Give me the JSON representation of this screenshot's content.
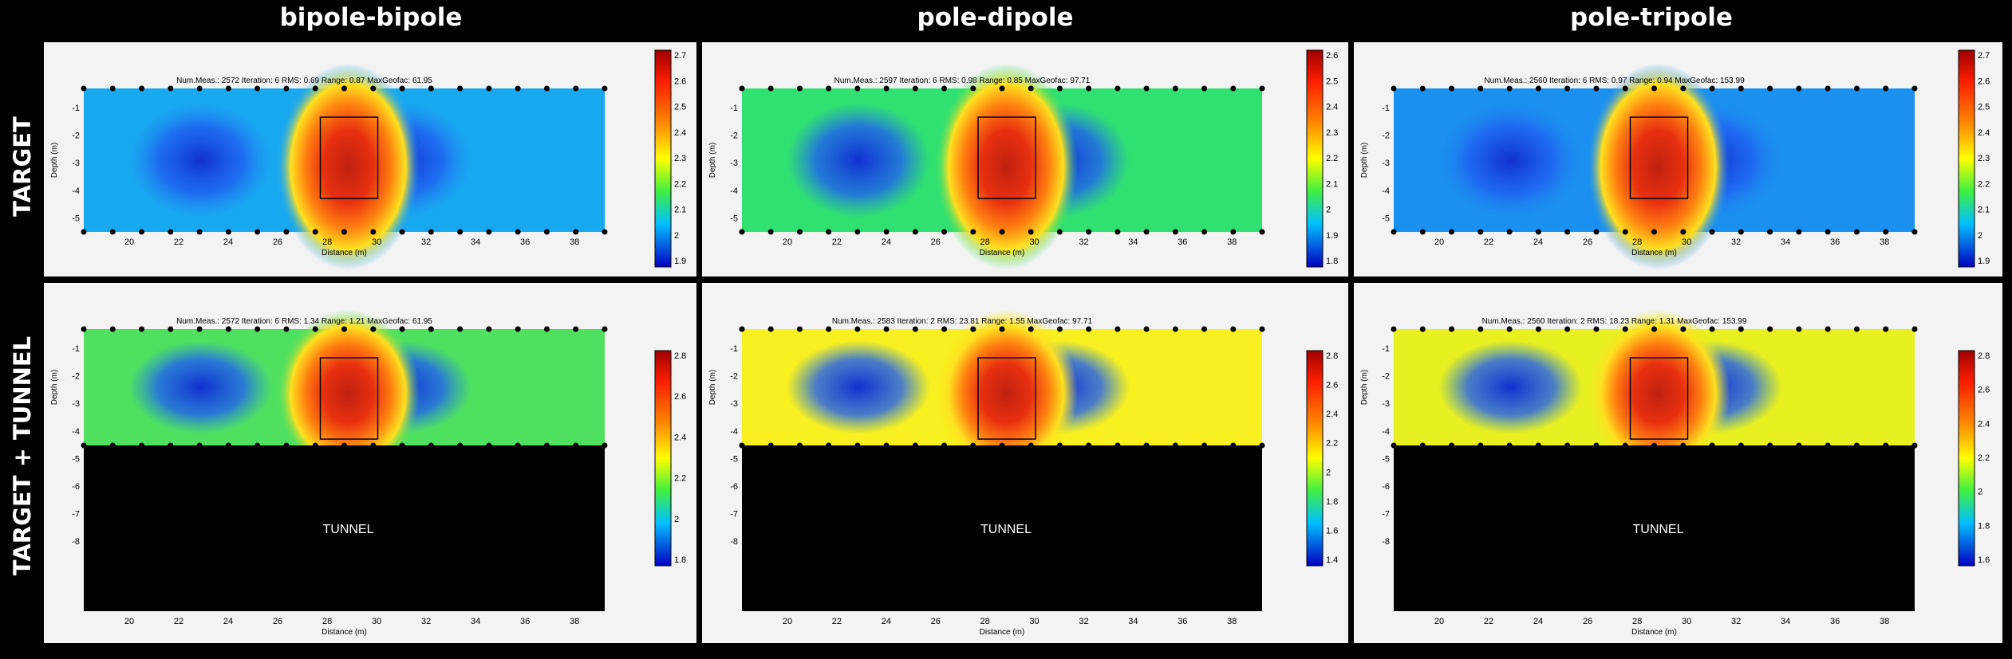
{
  "columns": [
    "bipole-bipole",
    "pole-dipole",
    "pole-tripole"
  ],
  "rows": [
    "TARGET",
    "TARGET + TUNNEL"
  ],
  "tunnel_label": "TUNNEL",
  "axis": {
    "xlabel": "Distance (m)",
    "ylabel": "Depth (m)",
    "x_ticks": [
      "20",
      "22",
      "24",
      "26",
      "28",
      "30",
      "32",
      "34",
      "36",
      "38"
    ],
    "y_ticks_target": [
      "-1",
      "-2",
      "-3",
      "-4",
      "-5"
    ],
    "y_ticks_tunnel": [
      "-1",
      "-2",
      "-3",
      "-4",
      "-5",
      "-6",
      "-7",
      "-8"
    ]
  },
  "panels": [
    {
      "row": 0,
      "col": 0,
      "info": "Num.Meas.: 2572   Iteration: 6   RMS: 0.69   Range: 0.87   MaxGeofac: 61.95",
      "colorbar": [
        "2.7",
        "2.6",
        "2.5",
        "2.4",
        "2.3",
        "2.2",
        "2.1",
        "2",
        "1.9"
      ],
      "bg": "#18a8f0"
    },
    {
      "row": 0,
      "col": 1,
      "info": "Num.Meas.: 2597   Iteration: 6   RMS: 0.98   Range: 0.85   MaxGeofac: 97.71",
      "colorbar": [
        "2.6",
        "2.5",
        "2.4",
        "2.3",
        "2.2",
        "2.1",
        "2",
        "1.9",
        "1.8"
      ],
      "bg": "#30e070"
    },
    {
      "row": 0,
      "col": 2,
      "info": "Num.Meas.: 2560   Iteration: 6   RMS: 0.97   Range: 0.94   MaxGeofac: 153.99",
      "colorbar": [
        "2.7",
        "2.6",
        "2.5",
        "2.4",
        "2.3",
        "2.2",
        "2.1",
        "2",
        "1.9"
      ],
      "bg": "#1a90f0"
    },
    {
      "row": 1,
      "col": 0,
      "info": "Num.Meas.: 2572   Iteration: 6   RMS: 1.34   Range: 1.21   MaxGeofac: 61.95",
      "colorbar": [
        "2.8",
        "2.6",
        "2.4",
        "2.2",
        "2",
        "1.8"
      ],
      "bg": "#50e060"
    },
    {
      "row": 1,
      "col": 1,
      "info": "Num.Meas.: 2583   Iteration: 2   RMS: 23.81   Range: 1.55   MaxGeofac: 97.71",
      "colorbar": [
        "2.8",
        "2.6",
        "2.4",
        "2.2",
        "2",
        "1.8",
        "1.6",
        "1.4"
      ],
      "bg": "#f8f020"
    },
    {
      "row": 1,
      "col": 2,
      "info": "Num.Meas.: 2560   Iteration: 2   RMS: 18.23   Range: 1.31   MaxGeofac: 153.99",
      "colorbar": [
        "2.8",
        "2.6",
        "2.4",
        "2.2",
        "2",
        "1.8",
        "1.6"
      ],
      "bg": "#e8f020"
    }
  ]
}
